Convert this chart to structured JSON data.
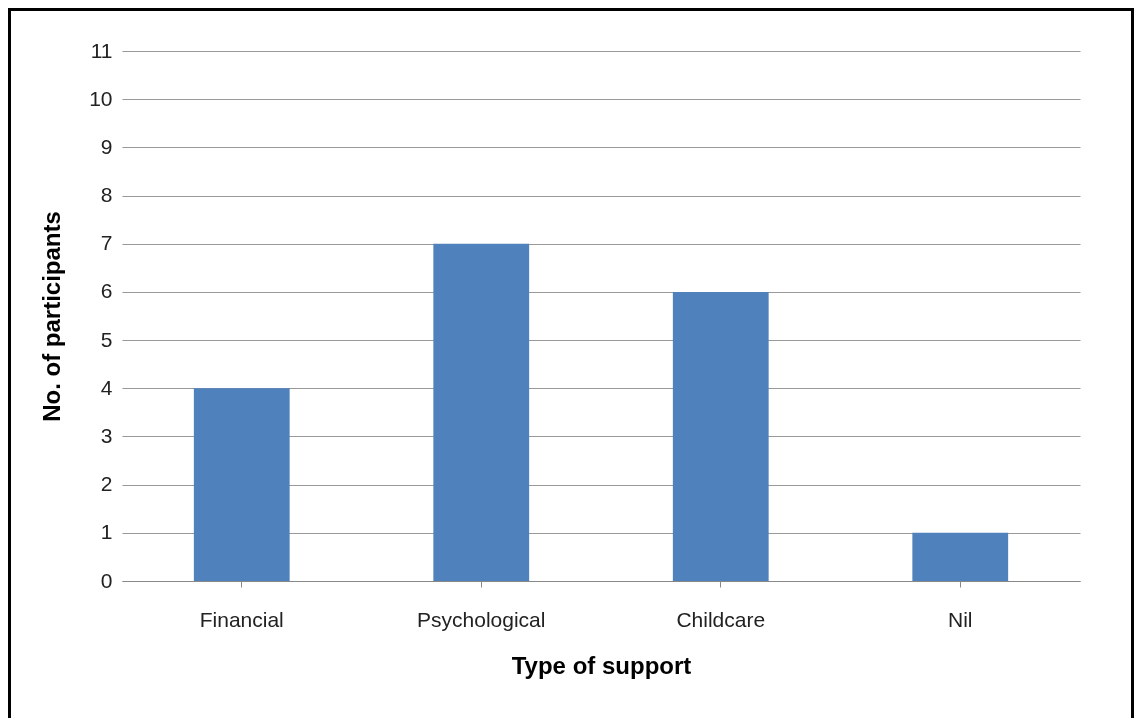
{
  "chart_data": {
    "type": "bar",
    "xlabel": "Type of support",
    "ylabel": "No. of participants",
    "categories": [
      "Financial",
      "Psychological",
      "Childcare",
      "Nil"
    ],
    "values": [
      4,
      7,
      6,
      1
    ],
    "color": "#4f81bd",
    "ylim": [
      0,
      11
    ],
    "yticks": [
      0,
      1,
      2,
      3,
      4,
      5,
      6,
      7,
      8,
      9,
      10,
      11
    ],
    "grid": "y"
  }
}
